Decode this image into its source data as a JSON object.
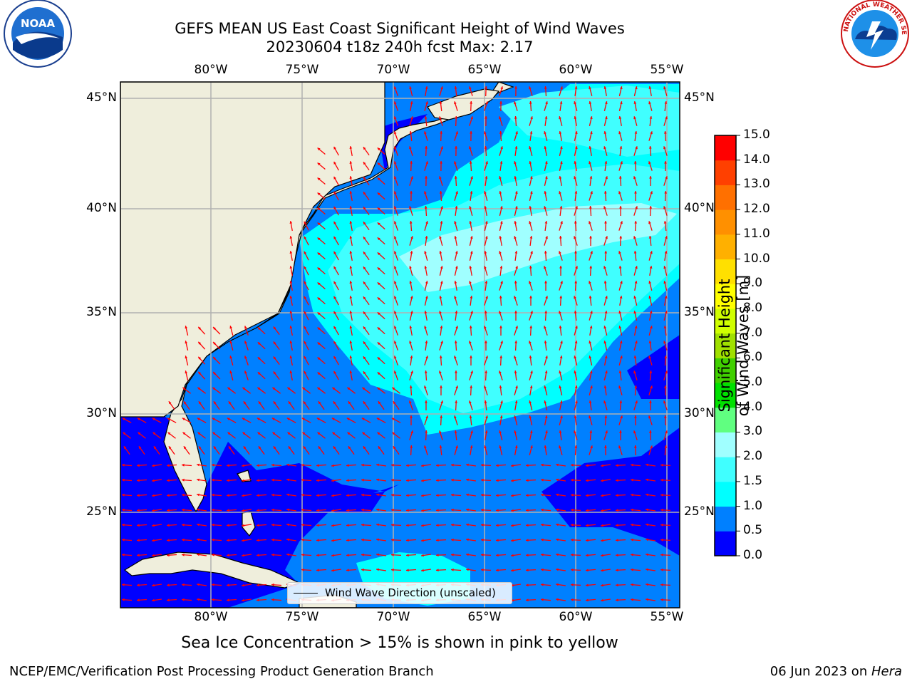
{
  "title": {
    "line1": "GEFS MEAN US East Coast Significant Height of Wind Waves",
    "line2": "20230604 t18z 240h fcst   Max: 2.17"
  },
  "map": {
    "lon_labels": [
      "80°W",
      "75°W",
      "70°W",
      "65°W",
      "60°W",
      "55°W"
    ],
    "lat_labels": [
      "45°N",
      "40°N",
      "35°N",
      "30°N",
      "25°N"
    ],
    "lon_range": [
      -85,
      -54.3
    ],
    "lat_range": [
      20.5,
      45.9
    ],
    "colors": {
      "land": "#efeedc",
      "level_0_0_5": "#0000ff",
      "level_0_5_1_0": "#0080ff",
      "level_1_0_1_5": "#00ffff",
      "level_1_5_2_0": "#40ffff",
      "level_2_0_3_0": "#a0ffff",
      "arrow": "#ff0000",
      "grid": "#b0b0b0",
      "coast": "#000000"
    },
    "legend": {
      "label": "Wind Wave Direction (unscaled)"
    }
  },
  "colorbar": {
    "ticks": [
      "0.0",
      "0.5",
      "1.0",
      "1.5",
      "2.0",
      "3.0",
      "4.0",
      "5.0",
      "6.0",
      "7.0",
      "8.0",
      "9.0",
      "10.0",
      "11.0",
      "12.0",
      "13.0",
      "14.0",
      "15.0"
    ],
    "colors": [
      "#0000ff",
      "#0080ff",
      "#00ffff",
      "#40ffff",
      "#a0ffff",
      "#60ff80",
      "#00e000",
      "#40d000",
      "#a0e000",
      "#d0ff00",
      "#ffff00",
      "#ffe000",
      "#ffb000",
      "#ff9000",
      "#ff7000",
      "#ff4000",
      "#ff0000"
    ],
    "label": "Significant Height of Wind Waves [m]"
  },
  "ice_note": "Sea Ice Concentration > 15% is shown in pink to yellow",
  "footer": {
    "left": "NCEP/EMC/Verification Post Processing Product Generation Branch",
    "date": "06 Jun 2023 on ",
    "host": "Hera"
  },
  "logos": {
    "noaa": "NOAA",
    "nws": "NATIONAL WEATHER SERVICE"
  }
}
